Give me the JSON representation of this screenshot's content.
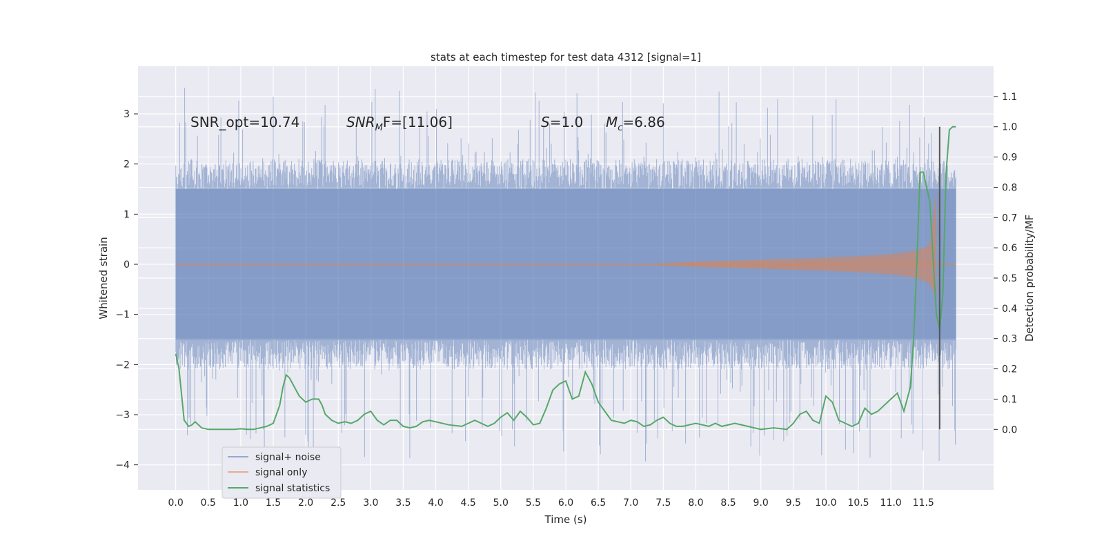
{
  "chart_data": {
    "type": "line",
    "title": "stats at each timestep for test data 4312 [signal=1]",
    "xlabel": "Time (s)",
    "ylabel_left": "Whitened strain",
    "ylabel_right": "Detection probability/MF",
    "xlim": [
      -0.58,
      12.58
    ],
    "ylim_left": [
      -4.5,
      3.95
    ],
    "ylim_right": [
      -0.2,
      1.2
    ],
    "x_ticks": [
      "0.0",
      "0.5",
      "1.0",
      "1.5",
      "2.0",
      "2.5",
      "3.0",
      "3.5",
      "4.0",
      "4.5",
      "5.0",
      "5.5",
      "6.0",
      "6.5",
      "7.0",
      "7.5",
      "8.0",
      "8.5",
      "9.0",
      "9.5",
      "10.0",
      "10.5",
      "11.0",
      "11.5"
    ],
    "y_left_ticks": [
      "3",
      "2",
      "1",
      "0",
      "−1",
      "−2",
      "−3",
      "−4"
    ],
    "y_left_values": [
      3,
      2,
      1,
      0,
      -1,
      -2,
      -3,
      -4
    ],
    "y_right_ticks": [
      "1.1",
      "1.0",
      "0.9",
      "0.8",
      "0.7",
      "0.6",
      "0.5",
      "0.4",
      "0.3",
      "0.2",
      "0.1",
      "0.0"
    ],
    "y_right_values": [
      1.1,
      1.0,
      0.9,
      0.8,
      0.7,
      0.6,
      0.5,
      0.4,
      0.3,
      0.2,
      0.1,
      0.0
    ],
    "grid": true,
    "annotations": {
      "snr_opt": "SNR_opt=10.74",
      "snr_mf_main": "SNR",
      "snr_mf_sub": "M",
      "snr_mf_rest": "F=[11.06]",
      "s_label": "S",
      "s_rest": "=1.0",
      "mc_main": "M",
      "mc_sub": "c",
      "mc_rest": "=6.86"
    },
    "marker_line_x": 11.75,
    "legend": {
      "placement": "lower-left",
      "entries": [
        "signal+ noise",
        "signal only",
        "signal statistics"
      ]
    },
    "series": [
      {
        "name": "signal+ noise",
        "axis": "left",
        "color": "#4c72b0",
        "kind": "noise-envelope",
        "x_range": [
          0.0,
          12.0
        ],
        "spread": 1.5,
        "peak_high": 3.6,
        "peak_low": -4.1
      },
      {
        "name": "signal only",
        "axis": "left",
        "color": "#dd8452",
        "kind": "chirp-envelope",
        "x": [
          0.0,
          7.0,
          7.5,
          8.0,
          8.5,
          9.0,
          9.5,
          10.0,
          10.5,
          11.0,
          11.3,
          11.5,
          11.6,
          11.7
        ],
        "amplitude": [
          0.0,
          0.0,
          0.02,
          0.05,
          0.07,
          0.09,
          0.11,
          0.13,
          0.16,
          0.2,
          0.25,
          0.32,
          0.4,
          1.45
        ]
      },
      {
        "name": "signal statistics",
        "axis": "right",
        "color": "#55a868",
        "x": [
          0.0,
          0.05,
          0.13,
          0.2,
          0.25,
          0.3,
          0.4,
          0.5,
          0.6,
          0.7,
          0.8,
          0.9,
          1.0,
          1.1,
          1.2,
          1.3,
          1.4,
          1.5,
          1.55,
          1.6,
          1.65,
          1.7,
          1.75,
          1.8,
          1.9,
          2.0,
          2.1,
          2.2,
          2.25,
          2.3,
          2.4,
          2.5,
          2.6,
          2.7,
          2.8,
          2.9,
          3.0,
          3.1,
          3.2,
          3.3,
          3.4,
          3.5,
          3.6,
          3.7,
          3.8,
          3.9,
          4.0,
          4.2,
          4.4,
          4.5,
          4.6,
          4.7,
          4.8,
          4.9,
          5.0,
          5.1,
          5.2,
          5.3,
          5.4,
          5.5,
          5.6,
          5.7,
          5.8,
          5.9,
          6.0,
          6.1,
          6.2,
          6.3,
          6.4,
          6.5,
          6.6,
          6.7,
          6.8,
          6.9,
          7.0,
          7.1,
          7.2,
          7.3,
          7.4,
          7.5,
          7.6,
          7.7,
          7.8,
          7.9,
          8.0,
          8.2,
          8.3,
          8.4,
          8.6,
          8.8,
          9.0,
          9.2,
          9.4,
          9.5,
          9.6,
          9.7,
          9.8,
          9.9,
          10.0,
          10.1,
          10.2,
          10.3,
          10.4,
          10.5,
          10.6,
          10.7,
          10.8,
          10.9,
          11.0,
          11.1,
          11.2,
          11.3,
          11.35,
          11.4,
          11.45,
          11.5,
          11.6,
          11.7,
          11.75,
          11.8,
          11.85,
          11.9,
          11.95,
          12.0
        ],
        "values": [
          0.25,
          0.2,
          0.03,
          0.01,
          0.015,
          0.025,
          0.005,
          0.0,
          0.0,
          0.0,
          0.0,
          0.0,
          0.002,
          0.0,
          0.0,
          0.005,
          0.01,
          0.02,
          0.05,
          0.08,
          0.14,
          0.18,
          0.17,
          0.15,
          0.11,
          0.09,
          0.1,
          0.1,
          0.08,
          0.05,
          0.03,
          0.02,
          0.025,
          0.02,
          0.03,
          0.05,
          0.06,
          0.03,
          0.015,
          0.03,
          0.03,
          0.01,
          0.005,
          0.01,
          0.025,
          0.03,
          0.025,
          0.015,
          0.01,
          0.02,
          0.03,
          0.02,
          0.01,
          0.02,
          0.04,
          0.055,
          0.03,
          0.06,
          0.04,
          0.015,
          0.02,
          0.07,
          0.13,
          0.15,
          0.16,
          0.1,
          0.11,
          0.19,
          0.15,
          0.09,
          0.06,
          0.03,
          0.025,
          0.02,
          0.03,
          0.025,
          0.01,
          0.015,
          0.03,
          0.04,
          0.02,
          0.01,
          0.01,
          0.015,
          0.02,
          0.01,
          0.02,
          0.01,
          0.02,
          0.01,
          0.0,
          0.005,
          0.0,
          0.02,
          0.05,
          0.06,
          0.03,
          0.02,
          0.11,
          0.09,
          0.03,
          0.02,
          0.01,
          0.02,
          0.07,
          0.05,
          0.06,
          0.08,
          0.1,
          0.12,
          0.06,
          0.14,
          0.3,
          0.55,
          0.85,
          0.85,
          0.75,
          0.38,
          0.33,
          0.45,
          0.85,
          0.99,
          1.0,
          1.0
        ]
      }
    ]
  }
}
